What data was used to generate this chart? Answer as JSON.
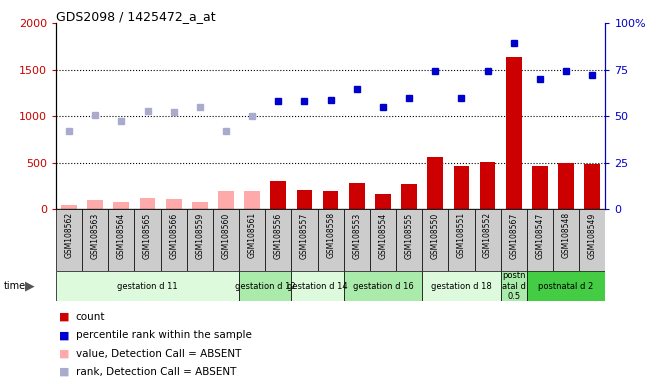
{
  "title": "GDS2098 / 1425472_a_at",
  "gsm_labels": [
    "GSM108562",
    "GSM108563",
    "GSM108564",
    "GSM108565",
    "GSM108566",
    "GSM108559",
    "GSM108560",
    "GSM108561",
    "GSM108556",
    "GSM108557",
    "GSM108558",
    "GSM108553",
    "GSM108554",
    "GSM108555",
    "GSM108550",
    "GSM108551",
    "GSM108552",
    "GSM108567",
    "GSM108547",
    "GSM108548",
    "GSM108549"
  ],
  "bar_values": [
    50,
    100,
    75,
    120,
    115,
    80,
    200,
    200,
    300,
    210,
    200,
    280,
    160,
    270,
    560,
    460,
    510,
    1630,
    460,
    500,
    490
  ],
  "bar_absent": [
    true,
    true,
    true,
    true,
    true,
    true,
    true,
    true,
    false,
    false,
    false,
    false,
    false,
    false,
    false,
    false,
    false,
    false,
    false,
    false,
    false
  ],
  "rank_values": [
    840,
    1010,
    950,
    1060,
    1040,
    1100,
    840,
    1000,
    1160,
    1160,
    1170,
    1290,
    1100,
    1200,
    1490,
    1200,
    1490,
    1790,
    1400,
    1480,
    1440
  ],
  "rank_absent": [
    true,
    true,
    true,
    true,
    true,
    true,
    true,
    true,
    false,
    false,
    false,
    false,
    false,
    false,
    false,
    false,
    false,
    false,
    false,
    false,
    false
  ],
  "groups": [
    {
      "label": "gestation d 11",
      "start": 0,
      "end": 7,
      "color": "#ddfadd"
    },
    {
      "label": "gestation d 12",
      "start": 7,
      "end": 9,
      "color": "#aaeaaa"
    },
    {
      "label": "gestation d 14",
      "start": 9,
      "end": 11,
      "color": "#ddfadd"
    },
    {
      "label": "gestation d 16",
      "start": 11,
      "end": 14,
      "color": "#aaeaaa"
    },
    {
      "label": "gestation d 18",
      "start": 14,
      "end": 17,
      "color": "#ddfadd"
    },
    {
      "label": "postn\natal d\n0.5",
      "start": 17,
      "end": 18,
      "color": "#aaeaaa"
    },
    {
      "label": "postnatal d 2",
      "start": 18,
      "end": 21,
      "color": "#44cc44"
    }
  ],
  "ylim": [
    0,
    2000
  ],
  "yticks_left": [
    0,
    500,
    1000,
    1500,
    2000
  ],
  "yticks_right_labels": [
    "0",
    "25",
    "50",
    "75",
    "100%"
  ],
  "bar_color_present": "#cc0000",
  "bar_color_absent": "#ffaaaa",
  "rank_color_present": "#0000cc",
  "rank_color_absent": "#aaaacc",
  "bg_color": "#ffffff",
  "right_axis_color": "#0000cc",
  "left_axis_color": "#cc0000",
  "grid_color": "#000000"
}
